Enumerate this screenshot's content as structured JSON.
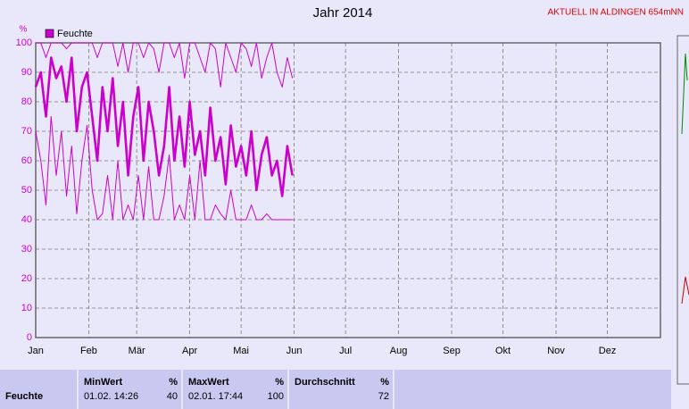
{
  "chart_data": {
    "type": "line",
    "title": "Jahr 2014",
    "annotation": "AKTUELL IN ALDINGEN 654mNN",
    "y_unit": "%",
    "x": [
      0,
      3,
      6,
      9,
      12,
      15,
      18,
      21,
      24,
      27,
      30,
      33,
      36,
      39,
      42,
      45,
      48,
      51,
      54,
      57,
      60,
      63,
      66,
      69,
      72,
      75,
      78,
      81,
      84,
      87,
      90,
      93,
      96,
      99,
      102,
      105,
      108,
      111,
      114,
      117,
      120,
      123,
      126,
      129,
      132,
      135,
      138,
      141,
      144,
      147,
      150
    ],
    "xlim": [
      0,
      365
    ],
    "xticks": [
      {
        "value": 0,
        "label": "Jan"
      },
      {
        "value": 31,
        "label": "Feb"
      },
      {
        "value": 59,
        "label": "Mär"
      },
      {
        "value": 90,
        "label": "Apr"
      },
      {
        "value": 120,
        "label": "Mai"
      },
      {
        "value": 151,
        "label": "Jun"
      },
      {
        "value": 181,
        "label": "Jul"
      },
      {
        "value": 212,
        "label": "Aug"
      },
      {
        "value": 243,
        "label": "Sep"
      },
      {
        "value": 273,
        "label": "Okt"
      },
      {
        "value": 304,
        "label": "Nov"
      },
      {
        "value": 334,
        "label": "Dez"
      }
    ],
    "ylim": [
      0,
      100
    ],
    "yticks": [
      0,
      10,
      20,
      30,
      40,
      50,
      60,
      70,
      80,
      90,
      100
    ],
    "grid": true,
    "series": [
      {
        "name": "Feuchte",
        "color": "#cc00cc",
        "values": [
          85,
          90,
          75,
          95,
          88,
          92,
          80,
          95,
          70,
          85,
          90,
          75,
          60,
          85,
          70,
          88,
          65,
          80,
          55,
          75,
          85,
          60,
          80,
          70,
          55,
          65,
          85,
          60,
          75,
          58,
          80,
          62,
          70,
          55,
          78,
          60,
          68,
          52,
          72,
          58,
          65,
          55,
          70,
          50,
          62,
          68,
          55,
          60,
          48,
          65,
          55
        ]
      },
      {
        "color": "#cc00cc",
        "values": [
          100,
          100,
          95,
          100,
          100,
          100,
          98,
          100,
          100,
          100,
          100,
          100,
          95,
          100,
          100,
          100,
          92,
          100,
          90,
          100,
          100,
          95,
          100,
          98,
          90,
          100,
          100,
          95,
          100,
          88,
          100,
          100,
          95,
          90,
          100,
          98,
          85,
          100,
          95,
          90,
          100,
          98,
          92,
          100,
          88,
          95,
          100,
          90,
          85,
          95,
          88
        ]
      },
      {
        "color": "#cc00cc",
        "values": [
          70,
          60,
          45,
          75,
          55,
          70,
          48,
          65,
          42,
          60,
          72,
          50,
          40,
          42,
          55,
          40,
          60,
          40,
          45,
          40,
          55,
          40,
          58,
          40,
          40,
          48,
          62,
          40,
          45,
          40,
          55,
          40,
          60,
          40,
          40,
          45,
          42,
          40,
          50,
          40,
          40,
          40,
          45,
          40,
          40,
          42,
          40,
          40,
          40,
          40,
          40
        ]
      }
    ]
  },
  "stats": {
    "columns": [
      {
        "title": "MinWert",
        "unit": "%"
      },
      {
        "title": "MaxWert",
        "unit": "%"
      },
      {
        "title": "Durchschnitt",
        "unit": "%"
      }
    ],
    "rows": [
      {
        "label": "Feuchte",
        "cells": [
          {
            "time": "01.02. 14:26",
            "value": "40"
          },
          {
            "time": "02.01. 17:44",
            "value": "100"
          },
          {
            "value": "72"
          }
        ]
      }
    ]
  }
}
